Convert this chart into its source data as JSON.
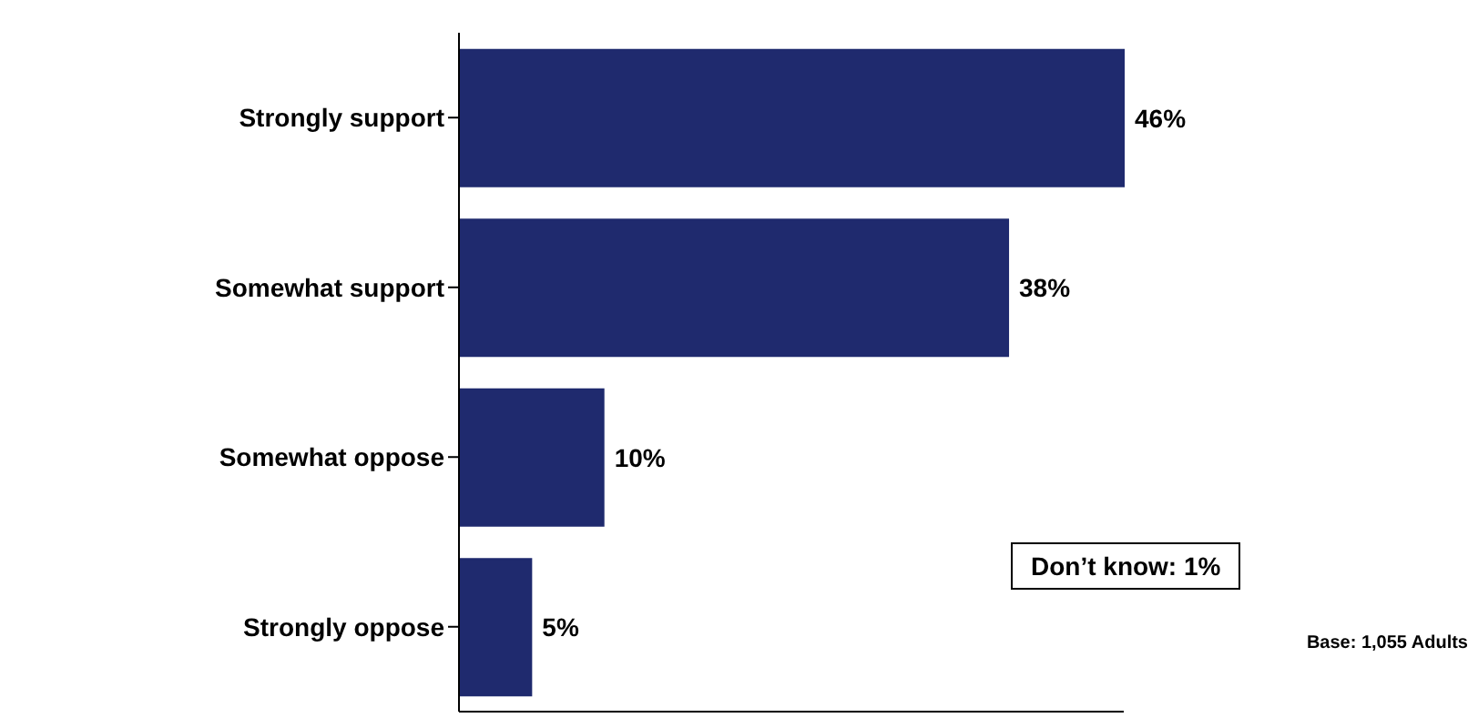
{
  "chart_data": {
    "type": "bar",
    "orientation": "horizontal",
    "categories": [
      "Strongly support",
      "Somewhat support",
      "Somewhat oppose",
      "Strongly oppose"
    ],
    "values": [
      46,
      38,
      10,
      5
    ],
    "value_labels": [
      "46%",
      "38%",
      "10%",
      "5%"
    ],
    "color": "#1f2a6e",
    "annotations": [
      "Don’t know: 1%",
      "Base: 1,055 Adults"
    ]
  }
}
